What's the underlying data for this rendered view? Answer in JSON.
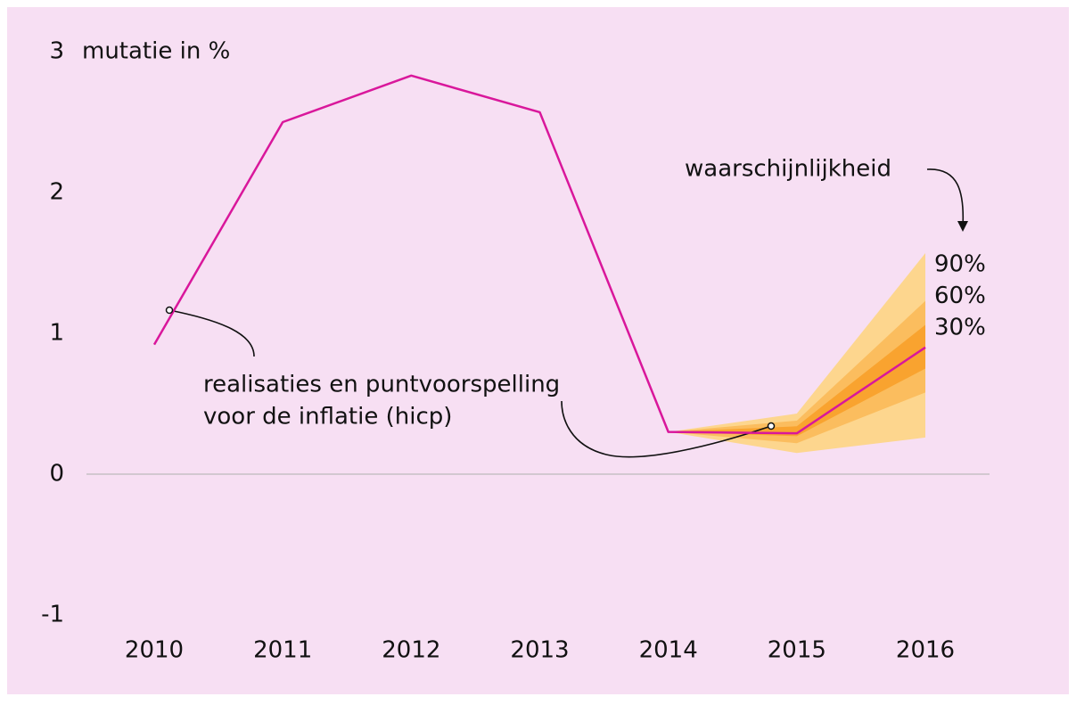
{
  "chart_data": {
    "type": "fan",
    "y_axis_label": "mutatie in %",
    "categories": [
      "2010",
      "2011",
      "2012",
      "2013",
      "2014",
      "2015",
      "2016"
    ],
    "series": [
      {
        "name": "realisaties en puntvoorspelling voor de inflatie (hicp)",
        "color": "#d9179b",
        "values": [
          0.92,
          2.5,
          2.83,
          2.57,
          0.3,
          0.29,
          0.9
        ]
      }
    ],
    "bands": [
      {
        "name": "90%",
        "color": "#fdd68e",
        "lower": [
          null,
          null,
          null,
          null,
          0.3,
          0.15,
          0.26
        ],
        "upper": [
          null,
          null,
          null,
          null,
          0.3,
          0.43,
          1.57
        ]
      },
      {
        "name": "60%",
        "color": "#fbbd5e",
        "lower": [
          null,
          null,
          null,
          null,
          0.3,
          0.22,
          0.58
        ],
        "upper": [
          null,
          null,
          null,
          null,
          0.3,
          0.38,
          1.23
        ]
      },
      {
        "name": "30%",
        "color": "#f9a32f",
        "lower": [
          null,
          null,
          null,
          null,
          0.3,
          0.27,
          0.75
        ],
        "upper": [
          null,
          null,
          null,
          null,
          0.3,
          0.34,
          1.06
        ]
      }
    ],
    "band_title": "waarschijnlijkheid",
    "series_annotation": [
      "realisaties en puntvoorspelling",
      "voor de inflatie (hicp)"
    ],
    "ylim": [
      -1,
      3
    ],
    "yticks": [
      -1,
      0,
      1,
      2,
      3
    ],
    "zero_line": true
  }
}
